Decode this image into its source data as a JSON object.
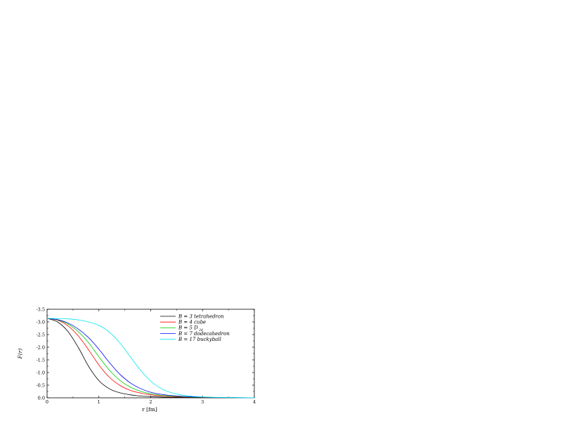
{
  "chart_data": {
    "type": "line",
    "title": "",
    "xlabel": "r [fm]",
    "ylabel": "F(r)",
    "xlim": [
      0,
      4
    ],
    "ylim": [
      0.0,
      -3.5
    ],
    "y_axis_inverted": true,
    "x_ticks": [
      0,
      1,
      2,
      3,
      4
    ],
    "x_tick_labels": [
      "0",
      "1",
      "2",
      "3",
      "4"
    ],
    "y_ticks": [
      0.0,
      -0.5,
      -1.0,
      -1.5,
      -2.0,
      -2.5,
      -3.0,
      -3.5
    ],
    "y_tick_labels": [
      "0.0",
      "-0.5",
      "-1.0",
      "-1.5",
      "-2.0",
      "-2.5",
      "-3.0",
      "-3.5"
    ],
    "grid": false,
    "legend_position": "top-right",
    "x": [
      0,
      0.2,
      0.4,
      0.6,
      0.8,
      1.0,
      1.2,
      1.4,
      1.6,
      1.8,
      2.0,
      2.2,
      2.4,
      2.6,
      2.8,
      3.0,
      3.2,
      3.4,
      3.6,
      3.8,
      4.0
    ],
    "series": [
      {
        "name": "B = 3   tetrahedron",
        "label_main": "B = 3   tetrahedron",
        "color": "#000000",
        "values": [
          -3.14,
          -3.0,
          -2.63,
          -2.0,
          -1.25,
          -0.68,
          -0.36,
          -0.2,
          -0.12,
          -0.07,
          -0.05,
          -0.03,
          -0.02,
          -0.015,
          -0.01,
          -0.007,
          -0.005,
          -0.003,
          -0.002,
          -0.001,
          -0.001
        ]
      },
      {
        "name": "B = 4   cube",
        "label_main": "B = 4   cube",
        "color": "#ff0000",
        "values": [
          -3.14,
          -3.07,
          -2.85,
          -2.45,
          -1.9,
          -1.3,
          -0.82,
          -0.5,
          -0.3,
          -0.19,
          -0.12,
          -0.08,
          -0.05,
          -0.035,
          -0.025,
          -0.017,
          -0.012,
          -0.008,
          -0.005,
          -0.003,
          -0.002
        ]
      },
      {
        "name": "B = 5   D 2d",
        "label_main": "B = 5   D",
        "label_sub": "2d",
        "color": "#00cc00",
        "values": [
          -3.14,
          -3.08,
          -2.92,
          -2.62,
          -2.18,
          -1.62,
          -1.1,
          -0.7,
          -0.43,
          -0.26,
          -0.16,
          -0.1,
          -0.065,
          -0.045,
          -0.03,
          -0.02,
          -0.014,
          -0.01,
          -0.007,
          -0.004,
          -0.003
        ]
      },
      {
        "name": "B = 7   dodecahedron",
        "label_main": "B = 7   dodecahedron",
        "color": "#0000ff",
        "values": [
          -3.14,
          -3.09,
          -2.96,
          -2.72,
          -2.38,
          -1.92,
          -1.4,
          -0.94,
          -0.6,
          -0.37,
          -0.22,
          -0.14,
          -0.09,
          -0.06,
          -0.04,
          -0.027,
          -0.018,
          -0.012,
          -0.008,
          -0.005,
          -0.003
        ]
      },
      {
        "name": "B = 17  buckyball",
        "label_main": "B = 17  buckyball",
        "color": "#00e5ee",
        "values": [
          -3.14,
          -3.13,
          -3.12,
          -3.08,
          -3.0,
          -2.86,
          -2.6,
          -2.18,
          -1.64,
          -1.1,
          -0.66,
          -0.37,
          -0.2,
          -0.11,
          -0.06,
          -0.035,
          -0.02,
          -0.012,
          -0.007,
          -0.004,
          -0.002
        ]
      }
    ]
  }
}
